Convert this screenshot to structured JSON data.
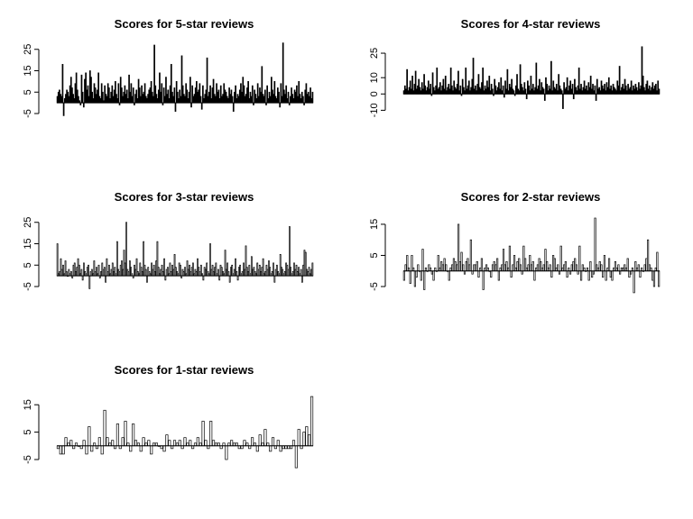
{
  "chart_data": [
    {
      "type": "bar",
      "title": "Scores for 5-star reviews",
      "yticks": [
        -5,
        5,
        15,
        25
      ],
      "ylim": [
        -5,
        27
      ],
      "bar_fill": "#000000",
      "values": [
        3,
        5,
        6,
        4,
        3,
        18,
        -6,
        2,
        4,
        6,
        5,
        3,
        8,
        12,
        7,
        4,
        2,
        9,
        14,
        6,
        3,
        1,
        -1,
        13,
        5,
        -2,
        11,
        14,
        6,
        8,
        3,
        15,
        12,
        5,
        2,
        9,
        7,
        4,
        6,
        14,
        3,
        2,
        9,
        5,
        1,
        8,
        4,
        3,
        9,
        7,
        2,
        5,
        8,
        3,
        6,
        10,
        4,
        2,
        9,
        -1,
        12,
        7,
        3,
        5,
        8,
        4,
        6,
        2,
        13,
        5,
        9,
        3,
        7,
        -1,
        4,
        6,
        2,
        11,
        7,
        3,
        8,
        4,
        5,
        9,
        3,
        2,
        4,
        6,
        7,
        10,
        5,
        3,
        27,
        8,
        4,
        2,
        6,
        14,
        5,
        9,
        -1,
        7,
        3,
        12,
        4,
        6,
        2,
        8,
        18,
        5,
        3,
        7,
        -4,
        10,
        5,
        2,
        6,
        3,
        22,
        8,
        4,
        3,
        9,
        6,
        2,
        5,
        12,
        -2,
        8,
        3,
        4,
        7,
        10,
        5,
        6,
        9,
        3,
        -3,
        8,
        2,
        4,
        6,
        21,
        3,
        5,
        8,
        2,
        7,
        11,
        4,
        3,
        9,
        5,
        6,
        2,
        8,
        3,
        4,
        9,
        6,
        5,
        3,
        2,
        7,
        4,
        6,
        3,
        -4,
        5,
        8,
        2,
        4,
        3,
        6,
        9,
        5,
        12,
        8,
        3,
        4,
        7,
        10,
        2,
        5,
        3,
        8,
        -1,
        6,
        4,
        2,
        9,
        3,
        7,
        5,
        17,
        4,
        3,
        6,
        -1,
        8,
        2,
        5,
        3,
        12,
        6,
        4,
        10,
        3,
        2,
        7,
        5,
        -2,
        9,
        3,
        28,
        6,
        4,
        8,
        2,
        5,
        -1,
        3,
        7,
        4,
        2,
        6,
        5,
        8,
        3,
        10,
        4,
        2,
        5,
        3,
        -1,
        6,
        9,
        4,
        5,
        3,
        7,
        2,
        5
      ]
    },
    {
      "type": "bar",
      "title": "Scores for 4-star reviews",
      "yticks": [
        -10,
        0,
        10,
        25
      ],
      "ylim": [
        -12,
        30
      ],
      "bar_fill": "#000000",
      "values": [
        2,
        5,
        3,
        15,
        2,
        4,
        8,
        3,
        11,
        2,
        6,
        14,
        3,
        5,
        9,
        4,
        2,
        7,
        3,
        12,
        5,
        2,
        4,
        8,
        3,
        6,
        -1,
        13,
        4,
        2,
        5,
        16,
        3,
        4,
        7,
        2,
        5,
        9,
        3,
        11,
        2,
        4,
        6,
        3,
        16,
        5,
        2,
        8,
        4,
        3,
        6,
        14,
        2,
        5,
        -1,
        9,
        4,
        2,
        16,
        3,
        5,
        8,
        2,
        4,
        9,
        22,
        3,
        5,
        2,
        6,
        12,
        4,
        3,
        7,
        16,
        2,
        5,
        3,
        8,
        4,
        11,
        2,
        6,
        3,
        -1,
        9,
        5,
        2,
        4,
        7,
        3,
        10,
        2,
        5,
        -2,
        8,
        3,
        15,
        2,
        6,
        4,
        9,
        3,
        2,
        -1,
        5,
        12,
        3,
        2,
        18,
        6,
        4,
        2,
        7,
        3,
        -3,
        8,
        5,
        2,
        11,
        3,
        6,
        2,
        4,
        19,
        3,
        5,
        9,
        2,
        7,
        4,
        3,
        -4,
        10,
        6,
        2,
        5,
        3,
        20,
        2,
        8,
        4,
        3,
        6,
        2,
        12,
        5,
        3,
        2,
        -9,
        7,
        3,
        4,
        10,
        2,
        5,
        8,
        3,
        6,
        -3,
        9,
        4,
        2,
        5,
        16,
        3,
        6,
        2,
        4,
        8,
        3,
        5,
        2,
        7,
        4,
        11,
        3,
        6,
        2,
        5,
        -4,
        9,
        3,
        4,
        2,
        8,
        5,
        3,
        6,
        2,
        7,
        4,
        10,
        3,
        5,
        2,
        6,
        4,
        3,
        2,
        8,
        5,
        17,
        2,
        4,
        6,
        3,
        9,
        5,
        2,
        6,
        3,
        4,
        8,
        2,
        5,
        3,
        6,
        4,
        2,
        7,
        3,
        5,
        29,
        11,
        4,
        2,
        6,
        8,
        3,
        5,
        2,
        4,
        7,
        3,
        5,
        6,
        2,
        8,
        3
      ]
    },
    {
      "type": "bar",
      "title": "Scores for 3-star reviews",
      "yticks": [
        -5,
        5,
        15,
        25
      ],
      "ylim": [
        -5,
        27
      ],
      "bar_fill": "#ffffff",
      "values": [
        15,
        1,
        2,
        8,
        3,
        5,
        1,
        7,
        2,
        0,
        3,
        1,
        2,
        -1,
        5,
        6,
        2,
        4,
        8,
        5,
        1,
        3,
        -2,
        6,
        2,
        1,
        4,
        5,
        -6,
        2,
        3,
        1,
        7,
        2,
        4,
        1,
        5,
        -1,
        2,
        6,
        3,
        4,
        -3,
        8,
        2,
        5,
        1,
        3,
        6,
        2,
        4,
        1,
        16,
        3,
        2,
        5,
        7,
        3,
        12,
        6,
        25,
        3,
        2,
        7,
        4,
        1,
        -1,
        5,
        3,
        8,
        2,
        1,
        6,
        4,
        2,
        16,
        5,
        3,
        -3,
        4,
        2,
        1,
        6,
        3,
        5,
        2,
        7,
        16,
        4,
        1,
        3,
        5,
        2,
        8,
        -2,
        3,
        4,
        1,
        6,
        2,
        5,
        3,
        10,
        4,
        2,
        1,
        6,
        5,
        -1,
        3,
        2,
        4,
        1,
        7,
        3,
        5,
        2,
        4,
        6,
        1,
        3,
        2,
        8,
        4,
        2,
        5,
        1,
        -2,
        4,
        3,
        6,
        2,
        1,
        15,
        3,
        5,
        2,
        4,
        6,
        1,
        3,
        -2,
        5,
        4,
        2,
        1,
        12,
        3,
        6,
        2,
        -3,
        4,
        5,
        1,
        3,
        8,
        2,
        -2,
        4,
        5,
        1,
        2,
        6,
        3,
        14,
        4,
        2,
        5,
        1,
        9,
        3,
        4,
        2,
        1,
        6,
        3,
        5,
        2,
        4,
        8,
        1,
        2,
        5,
        3,
        7,
        4,
        1,
        2,
        6,
        -3,
        3,
        5,
        2,
        1,
        10,
        4,
        3,
        1,
        2,
        6,
        5,
        3,
        23,
        4,
        1,
        2,
        6,
        3,
        5,
        2,
        4,
        1,
        3,
        -3,
        5,
        12,
        11,
        3,
        2,
        4,
        1,
        3,
        6
      ]
    },
    {
      "type": "bar",
      "title": "Scores for 2-star reviews",
      "yticks": [
        -5,
        5,
        15
      ],
      "ylim": [
        -5,
        17
      ],
      "bar_fill": "#ffffff",
      "values": [
        -3,
        2,
        5,
        1,
        -4,
        5,
        1,
        -5,
        -2,
        2,
        0,
        -3,
        7,
        -6,
        1,
        0,
        2,
        1,
        -1,
        -3,
        1,
        0,
        5,
        1,
        3,
        2,
        4,
        2,
        0,
        -3,
        1,
        2,
        4,
        3,
        2,
        15,
        3,
        6,
        2,
        -1,
        3,
        4,
        2,
        10,
        -1,
        2,
        2,
        3,
        -2,
        1,
        4,
        -6,
        1,
        2,
        1,
        0,
        -2,
        2,
        3,
        2,
        4,
        -3,
        1,
        2,
        7,
        2,
        3,
        1,
        8,
        -2,
        2,
        5,
        1,
        3,
        4,
        2,
        -1,
        8,
        4,
        1,
        2,
        5,
        2,
        3,
        -3,
        1,
        2,
        4,
        3,
        1,
        2,
        7,
        3,
        1,
        2,
        -2,
        5,
        4,
        1,
        2,
        -1,
        8,
        1,
        2,
        3,
        -2,
        1,
        -1,
        2,
        3,
        4,
        2,
        -1,
        8,
        -3,
        2,
        1,
        0,
        1,
        -3,
        3,
        -2,
        -1,
        17,
        2,
        1,
        3,
        2,
        -2,
        5,
        -3,
        1,
        4,
        -2,
        -3,
        1,
        3,
        1,
        2,
        -1,
        1,
        1,
        2,
        1,
        4,
        -2,
        -1,
        1,
        -7,
        3,
        1,
        2,
        -2,
        1,
        0,
        2,
        4,
        10,
        2,
        1,
        -3,
        -5,
        1,
        6,
        -5
      ]
    },
    {
      "type": "bar",
      "title": "Scores for 1-star reviews",
      "yticks": [
        -5,
        5,
        15
      ],
      "ylim": [
        -5,
        20
      ],
      "bar_fill": "#ffffff",
      "values": [
        -1,
        -3,
        -3,
        3,
        1,
        2,
        -1,
        1,
        0,
        -1,
        2,
        -3,
        7,
        -2,
        1,
        -1,
        3,
        -3,
        13,
        3,
        1,
        2,
        -1,
        8,
        -1,
        3,
        9,
        1,
        -2,
        8,
        2,
        1,
        -2,
        3,
        1,
        2,
        -3,
        1,
        1,
        0,
        -1,
        -2,
        4,
        2,
        -1,
        2,
        1,
        2,
        -1,
        3,
        1,
        2,
        -1,
        1,
        3,
        1,
        9,
        2,
        -1,
        9,
        2,
        1,
        1,
        -1,
        1,
        -5,
        1,
        2,
        1,
        1,
        -1,
        -1,
        2,
        1,
        -1,
        3,
        1,
        -2,
        4,
        1,
        6,
        1,
        -2,
        3,
        -1,
        2,
        -2,
        -1,
        -1,
        -1,
        -1,
        2,
        -8,
        6,
        -1,
        5,
        7,
        4,
        18
      ]
    }
  ]
}
